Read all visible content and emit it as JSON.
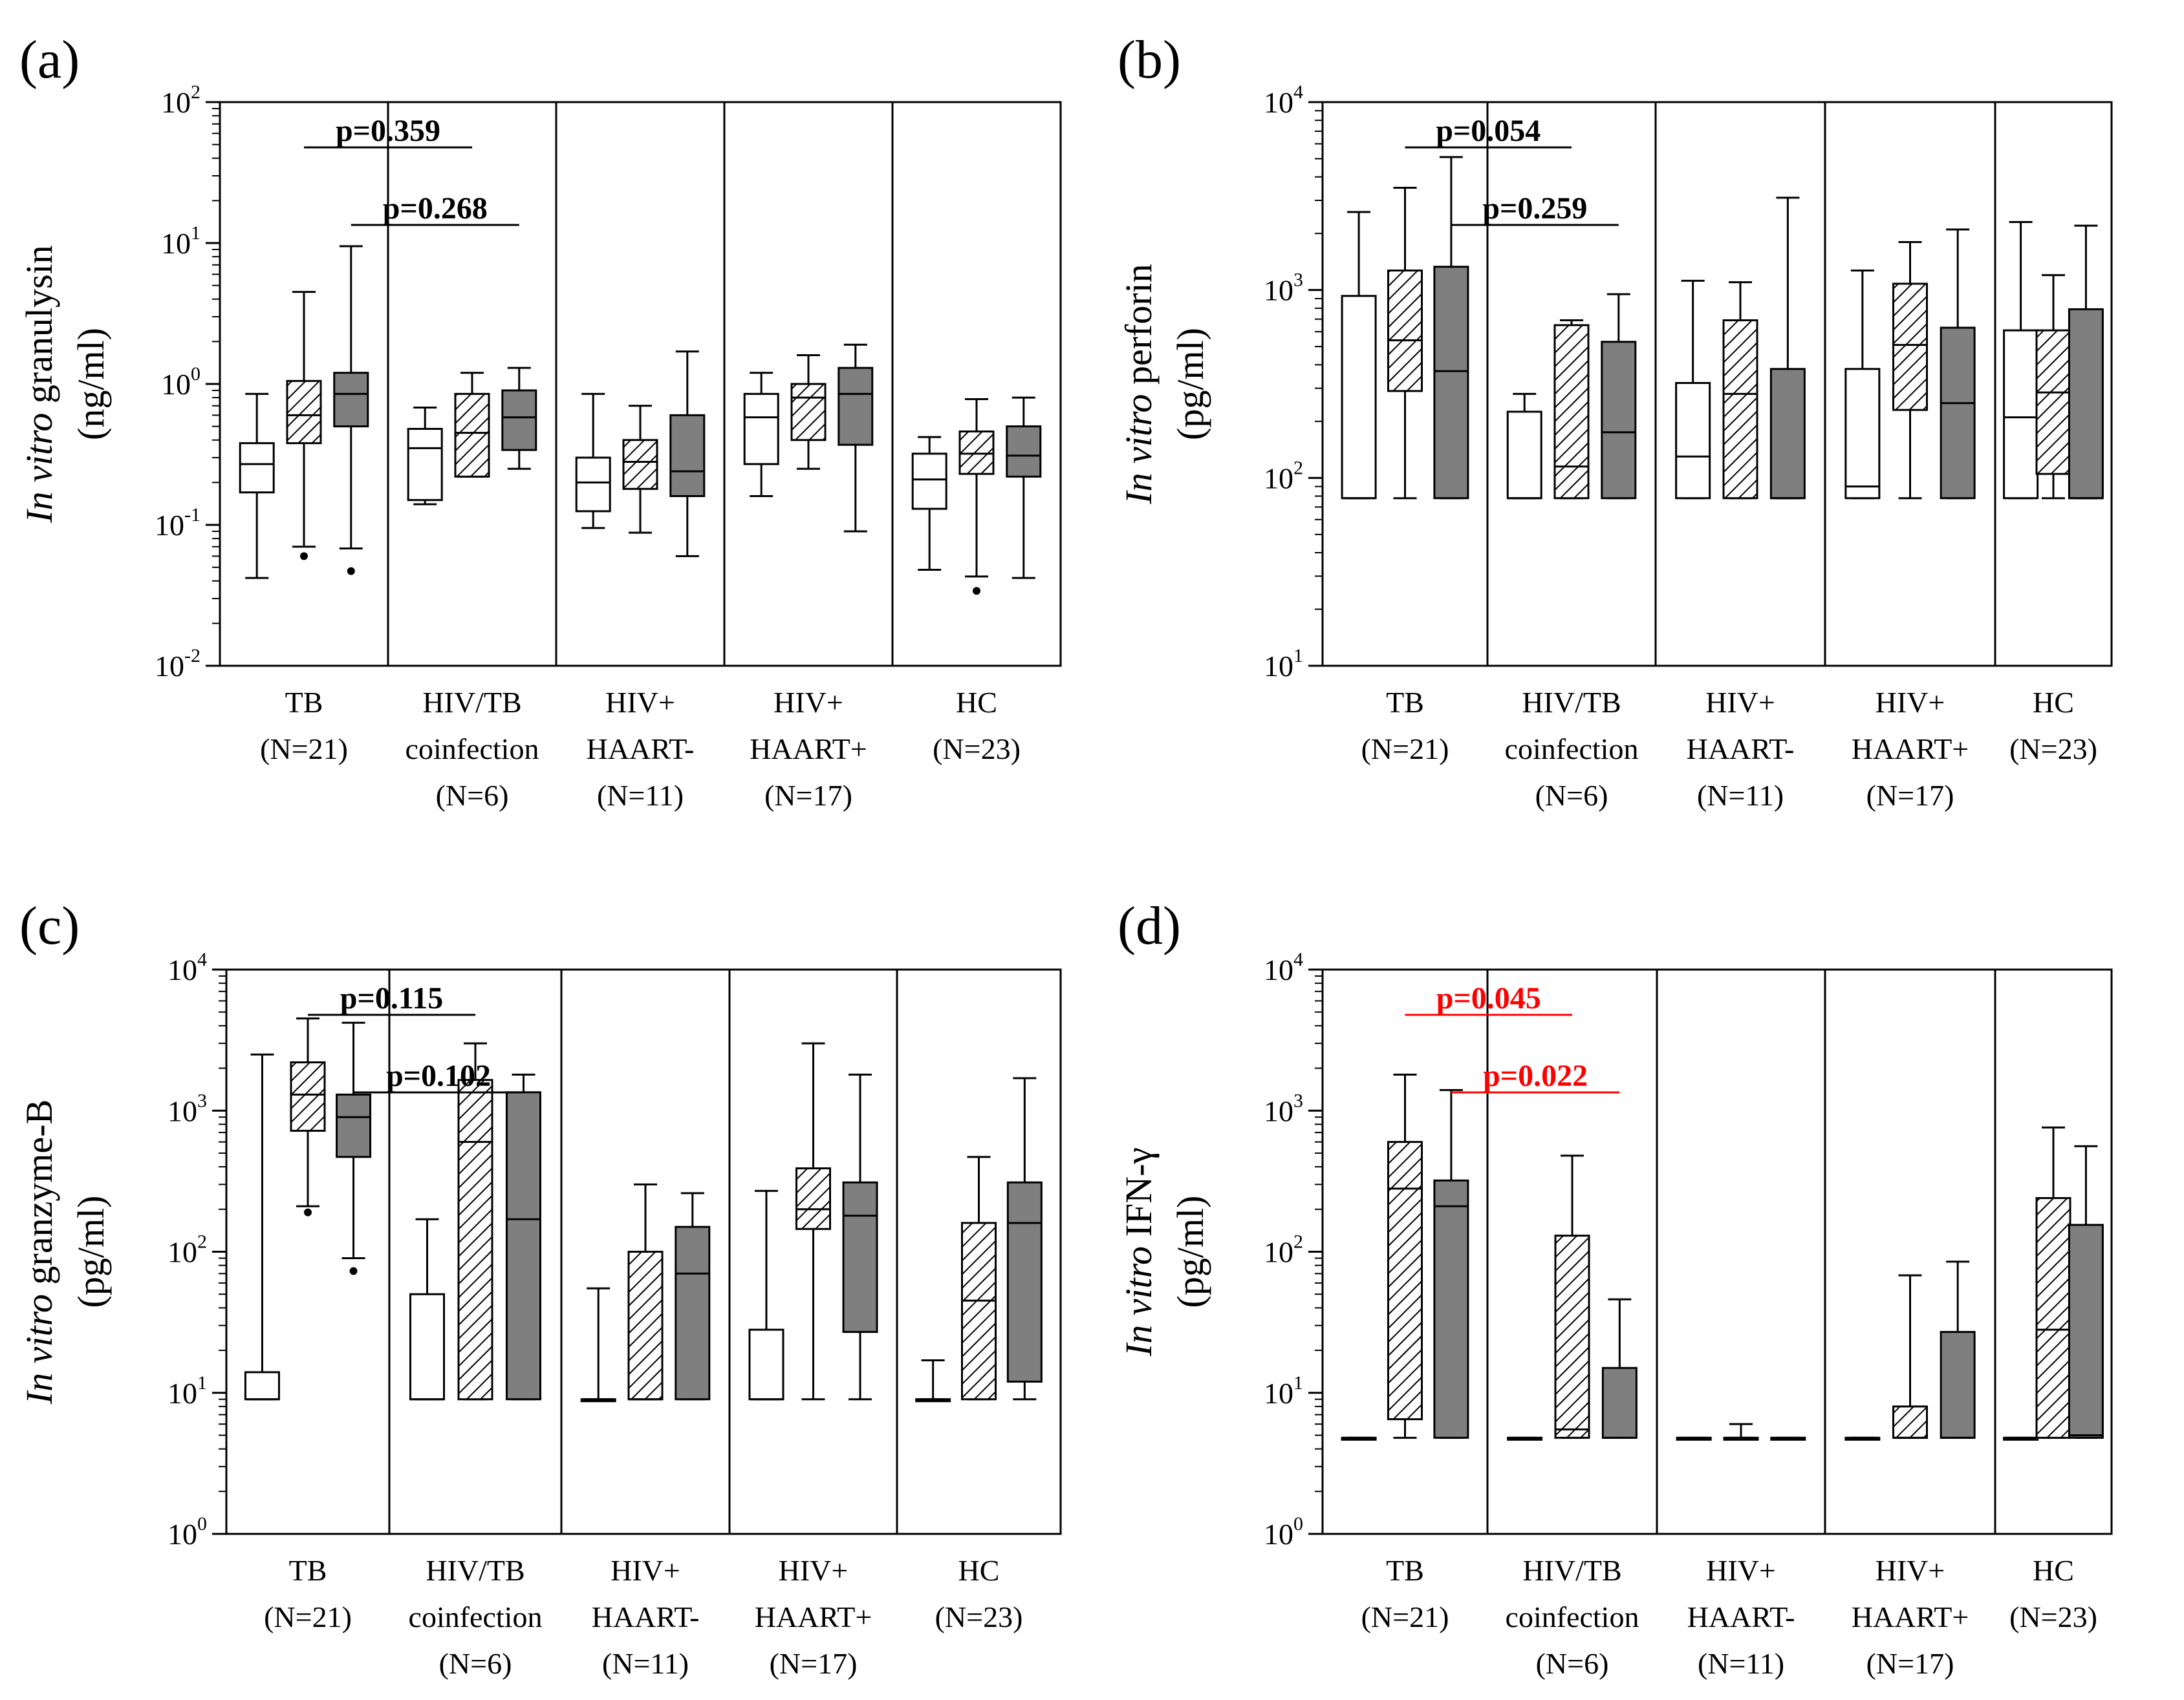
{
  "colors": {
    "ink": "#000000",
    "box_open": "#ffffff",
    "box_filled": "#7f7f7f",
    "significant": "#ff0000"
  },
  "legend_fills": [
    "open",
    "hatched",
    "filled"
  ],
  "chart_data": [
    {
      "panel": "(a)",
      "type": "box",
      "ylabel_italic": "In vitro",
      "ylabel_rest": "granulysin",
      "yunit": "(ng/ml)",
      "yscale": "log",
      "ylim": [
        0.01,
        100
      ],
      "ytick_exponents": [
        -2,
        -1,
        0,
        1,
        2
      ],
      "groups": [
        {
          "label": [
            "TB",
            "(N=21)"
          ]
        },
        {
          "label": [
            "HIV/TB",
            "coinfection",
            "(N=6)"
          ]
        },
        {
          "label": [
            "HIV+",
            "HAART-",
            "(N=11)"
          ]
        },
        {
          "label": [
            "HIV+",
            "HAART+",
            "(N=17)"
          ]
        },
        {
          "label": [
            "HC",
            "(N=23)"
          ]
        }
      ],
      "boxes": [
        {
          "group": 0,
          "fill": "open",
          "min": 0.042,
          "q1": 0.17,
          "median": 0.27,
          "q3": 0.38,
          "max": 0.85
        },
        {
          "group": 0,
          "fill": "hatched",
          "min": 0.07,
          "q1": 0.38,
          "median": 0.6,
          "q3": 1.05,
          "max": 4.5,
          "outliers": [
            0.06
          ]
        },
        {
          "group": 0,
          "fill": "filled",
          "min": 0.068,
          "q1": 0.5,
          "median": 0.85,
          "q3": 1.2,
          "max": 9.5,
          "outliers": [
            0.047
          ]
        },
        {
          "group": 1,
          "fill": "open",
          "min": 0.14,
          "q1": 0.15,
          "median": 0.35,
          "q3": 0.48,
          "max": 0.68
        },
        {
          "group": 1,
          "fill": "hatched",
          "min": 0.22,
          "q1": 0.22,
          "median": 0.45,
          "q3": 0.85,
          "max": 1.2
        },
        {
          "group": 1,
          "fill": "filled",
          "min": 0.25,
          "q1": 0.34,
          "median": 0.58,
          "q3": 0.9,
          "max": 1.3
        },
        {
          "group": 2,
          "fill": "open",
          "min": 0.095,
          "q1": 0.125,
          "median": 0.2,
          "q3": 0.3,
          "max": 0.85
        },
        {
          "group": 2,
          "fill": "hatched",
          "min": 0.088,
          "q1": 0.18,
          "median": 0.28,
          "q3": 0.4,
          "max": 0.7
        },
        {
          "group": 2,
          "fill": "filled",
          "min": 0.06,
          "q1": 0.16,
          "median": 0.24,
          "q3": 0.6,
          "max": 1.7
        },
        {
          "group": 3,
          "fill": "open",
          "min": 0.16,
          "q1": 0.27,
          "median": 0.58,
          "q3": 0.85,
          "max": 1.2
        },
        {
          "group": 3,
          "fill": "hatched",
          "min": 0.25,
          "q1": 0.4,
          "median": 0.8,
          "q3": 1.0,
          "max": 1.6
        },
        {
          "group": 3,
          "fill": "filled",
          "min": 0.09,
          "q1": 0.37,
          "median": 0.85,
          "q3": 1.3,
          "max": 1.9
        },
        {
          "group": 4,
          "fill": "open",
          "min": 0.048,
          "q1": 0.13,
          "median": 0.21,
          "q3": 0.32,
          "max": 0.42
        },
        {
          "group": 4,
          "fill": "hatched",
          "min": 0.043,
          "q1": 0.23,
          "median": 0.32,
          "q3": 0.46,
          "max": 0.78,
          "outliers": [
            0.034
          ]
        },
        {
          "group": 4,
          "fill": "filled",
          "min": 0.042,
          "q1": 0.22,
          "median": 0.31,
          "q3": 0.5,
          "max": 0.8
        }
      ],
      "comparisons": [
        {
          "text": "p=0.359",
          "from": [
            0,
            1
          ],
          "to": [
            1,
            1
          ],
          "level": 0,
          "significant": false
        },
        {
          "text": "p=0.268",
          "from": [
            0,
            2
          ],
          "to": [
            1,
            2
          ],
          "level": 1,
          "significant": false
        }
      ]
    },
    {
      "panel": "(b)",
      "type": "box",
      "ylabel_italic": "In vitro",
      "ylabel_rest": "perforin",
      "yunit": "(pg/ml)",
      "yscale": "log",
      "ylim": [
        10,
        10000
      ],
      "ytick_exponents": [
        1,
        2,
        3,
        4
      ],
      "groups": [
        {
          "label": [
            "TB",
            "(N=21)"
          ]
        },
        {
          "label": [
            "HIV/TB",
            "coinfection",
            "(N=6)"
          ]
        },
        {
          "label": [
            "HIV+",
            "HAART-",
            "(N=11)"
          ]
        },
        {
          "label": [
            "HIV+",
            "HAART+",
            "(N=17)"
          ]
        },
        {
          "label": [
            "HC",
            "(N=23)"
          ]
        }
      ],
      "boxes": [
        {
          "group": 0,
          "fill": "open",
          "min": 78,
          "q1": 78,
          "median": 78,
          "q3": 930,
          "max": 2600
        },
        {
          "group": 0,
          "fill": "hatched",
          "min": 78,
          "q1": 290,
          "median": 540,
          "q3": 1270,
          "max": 3500
        },
        {
          "group": 0,
          "fill": "filled",
          "min": 78,
          "q1": 78,
          "median": 370,
          "q3": 1330,
          "max": 5100
        },
        {
          "group": 1,
          "fill": "open",
          "min": 78,
          "q1": 78,
          "median": 78,
          "q3": 225,
          "max": 280
        },
        {
          "group": 1,
          "fill": "hatched",
          "min": 78,
          "q1": 78,
          "median": 115,
          "q3": 650,
          "max": 690
        },
        {
          "group": 1,
          "fill": "filled",
          "min": 78,
          "q1": 78,
          "median": 175,
          "q3": 530,
          "max": 950
        },
        {
          "group": 2,
          "fill": "open",
          "min": 78,
          "q1": 78,
          "median": 130,
          "q3": 320,
          "max": 1120
        },
        {
          "group": 2,
          "fill": "hatched",
          "min": 78,
          "q1": 78,
          "median": 280,
          "q3": 690,
          "max": 1100
        },
        {
          "group": 2,
          "fill": "filled",
          "min": 78,
          "q1": 78,
          "median": 78,
          "q3": 380,
          "max": 3100
        },
        {
          "group": 3,
          "fill": "open",
          "min": 78,
          "q1": 78,
          "median": 90,
          "q3": 380,
          "max": 1270
        },
        {
          "group": 3,
          "fill": "hatched",
          "min": 78,
          "q1": 230,
          "median": 510,
          "q3": 1080,
          "max": 1800
        },
        {
          "group": 3,
          "fill": "filled",
          "min": 78,
          "q1": 78,
          "median": 250,
          "q3": 630,
          "max": 2100
        },
        {
          "group": 4,
          "fill": "open",
          "min": 78,
          "q1": 78,
          "median": 210,
          "q3": 610,
          "max": 2300
        },
        {
          "group": 4,
          "fill": "hatched",
          "min": 78,
          "q1": 105,
          "median": 285,
          "q3": 610,
          "max": 1200
        },
        {
          "group": 4,
          "fill": "filled",
          "min": 78,
          "q1": 78,
          "median": 78,
          "q3": 790,
          "max": 2200
        }
      ],
      "comparisons": [
        {
          "text": "p=0.054",
          "from": [
            0,
            1
          ],
          "to": [
            1,
            1
          ],
          "level": 0,
          "significant": false
        },
        {
          "text": "p=0.259",
          "from": [
            0,
            2
          ],
          "to": [
            1,
            2
          ],
          "level": 1,
          "significant": false
        }
      ]
    },
    {
      "panel": "(c)",
      "type": "box",
      "ylabel_italic": "In vitro",
      "ylabel_rest": "granzyme-B",
      "yunit": "(pg/ml)",
      "yscale": "log",
      "ylim": [
        1,
        10000
      ],
      "ytick_exponents": [
        0,
        1,
        2,
        3,
        4
      ],
      "groups": [
        {
          "label": [
            "TB",
            "(N=21)"
          ]
        },
        {
          "label": [
            "HIV/TB",
            "coinfection",
            "(N=6)"
          ]
        },
        {
          "label": [
            "HIV+",
            "HAART-",
            "(N=11)"
          ]
        },
        {
          "label": [
            "HIV+",
            "HAART+",
            "(N=17)"
          ]
        },
        {
          "label": [
            "HC",
            "(N=23)"
          ]
        }
      ],
      "boxes": [
        {
          "group": 0,
          "fill": "open",
          "min": 9,
          "q1": 9,
          "median": 9,
          "q3": 14,
          "max": 2500
        },
        {
          "group": 0,
          "fill": "hatched",
          "min": 210,
          "q1": 720,
          "median": 1300,
          "q3": 2200,
          "max": 4500,
          "outliers": [
            190
          ]
        },
        {
          "group": 0,
          "fill": "filled",
          "min": 90,
          "q1": 470,
          "median": 900,
          "q3": 1300,
          "max": 4200,
          "outliers": [
            73
          ]
        },
        {
          "group": 1,
          "fill": "open",
          "min": 9,
          "q1": 9,
          "median": 9,
          "q3": 50,
          "max": 170
        },
        {
          "group": 1,
          "fill": "hatched",
          "min": 9,
          "q1": 9,
          "median": 600,
          "q3": 1650,
          "max": 3000
        },
        {
          "group": 1,
          "fill": "filled",
          "min": 9,
          "q1": 9,
          "median": 170,
          "q3": 1350,
          "max": 1800
        },
        {
          "group": 2,
          "fill": "open",
          "min": 9,
          "q1": 9,
          "median": 9,
          "q3": 9,
          "max": 55
        },
        {
          "group": 2,
          "fill": "hatched",
          "min": 9,
          "q1": 9,
          "median": 9,
          "q3": 100,
          "max": 300
        },
        {
          "group": 2,
          "fill": "filled",
          "min": 9,
          "q1": 9,
          "median": 70,
          "q3": 150,
          "max": 260
        },
        {
          "group": 3,
          "fill": "open",
          "min": 9,
          "q1": 9,
          "median": 9,
          "q3": 28,
          "max": 270
        },
        {
          "group": 3,
          "fill": "hatched",
          "min": 9,
          "q1": 145,
          "median": 200,
          "q3": 390,
          "max": 3000
        },
        {
          "group": 3,
          "fill": "filled",
          "min": 9,
          "q1": 27,
          "median": 180,
          "q3": 310,
          "max": 1800
        },
        {
          "group": 4,
          "fill": "open",
          "min": 9,
          "q1": 9,
          "median": 9,
          "q3": 9,
          "max": 17
        },
        {
          "group": 4,
          "fill": "hatched",
          "min": 9,
          "q1": 9,
          "median": 45,
          "q3": 160,
          "max": 470
        },
        {
          "group": 4,
          "fill": "filled",
          "min": 9,
          "q1": 12,
          "median": 160,
          "q3": 310,
          "max": 1700
        }
      ],
      "comparisons": [
        {
          "text": "p=0.115",
          "from": [
            0,
            1
          ],
          "to": [
            1,
            1
          ],
          "level": 0,
          "significant": false
        },
        {
          "text": "p=0.102",
          "from": [
            0,
            2
          ],
          "to": [
            1,
            2
          ],
          "level": 1,
          "significant": false
        }
      ]
    },
    {
      "panel": "(d)",
      "type": "box",
      "ylabel_italic": "In vitro",
      "ylabel_rest": "IFN-γ",
      "yunit": "(pg/ml)",
      "yscale": "log",
      "ylim": [
        1,
        10000
      ],
      "ytick_exponents": [
        0,
        1,
        2,
        3,
        4
      ],
      "groups": [
        {
          "label": [
            "TB",
            "(N=21)"
          ]
        },
        {
          "label": [
            "HIV/TB",
            "coinfection",
            "(N=6)"
          ]
        },
        {
          "label": [
            "HIV+",
            "HAART-",
            "(N=11)"
          ]
        },
        {
          "label": [
            "HIV+",
            "HAART+",
            "(N=17)"
          ]
        },
        {
          "label": [
            "HC",
            "(N=23)"
          ]
        }
      ],
      "boxes": [
        {
          "group": 0,
          "fill": "open",
          "min": 4.8,
          "q1": 4.8,
          "median": 4.8,
          "q3": 4.8,
          "max": 4.8
        },
        {
          "group": 0,
          "fill": "hatched",
          "min": 4.8,
          "q1": 6.5,
          "median": 280,
          "q3": 600,
          "max": 1800
        },
        {
          "group": 0,
          "fill": "filled",
          "min": 4.8,
          "q1": 4.8,
          "median": 210,
          "q3": 320,
          "max": 1400
        },
        {
          "group": 1,
          "fill": "open",
          "min": 4.8,
          "q1": 4.8,
          "median": 4.8,
          "q3": 4.8,
          "max": 4.8
        },
        {
          "group": 1,
          "fill": "hatched",
          "min": 4.8,
          "q1": 4.8,
          "median": 5.5,
          "q3": 130,
          "max": 480
        },
        {
          "group": 1,
          "fill": "filled",
          "min": 4.8,
          "q1": 4.8,
          "median": 4.8,
          "q3": 15,
          "max": 46
        },
        {
          "group": 2,
          "fill": "open",
          "min": 4.8,
          "q1": 4.8,
          "median": 4.8,
          "q3": 4.8,
          "max": 4.8
        },
        {
          "group": 2,
          "fill": "hatched",
          "min": 4.8,
          "q1": 4.8,
          "median": 4.8,
          "q3": 4.8,
          "max": 6
        },
        {
          "group": 2,
          "fill": "filled",
          "min": 4.8,
          "q1": 4.8,
          "median": 4.8,
          "q3": 4.8,
          "max": 4.8
        },
        {
          "group": 3,
          "fill": "open",
          "min": 4.8,
          "q1": 4.8,
          "median": 4.8,
          "q3": 4.8,
          "max": 4.8
        },
        {
          "group": 3,
          "fill": "hatched",
          "min": 4.8,
          "q1": 4.8,
          "median": 4.8,
          "q3": 8,
          "max": 68
        },
        {
          "group": 3,
          "fill": "filled",
          "min": 4.8,
          "q1": 4.8,
          "median": 4.8,
          "q3": 27,
          "max": 85
        },
        {
          "group": 4,
          "fill": "open",
          "min": 4.8,
          "q1": 4.8,
          "median": 4.8,
          "q3": 4.8,
          "max": 4.8
        },
        {
          "group": 4,
          "fill": "hatched",
          "min": 4.8,
          "q1": 4.8,
          "median": 28,
          "q3": 240,
          "max": 760
        },
        {
          "group": 4,
          "fill": "filled",
          "min": 4.8,
          "q1": 4.8,
          "median": 5,
          "q3": 155,
          "max": 560
        }
      ],
      "comparisons": [
        {
          "text": "p=0.045",
          "from": [
            0,
            1
          ],
          "to": [
            1,
            1
          ],
          "level": 0,
          "significant": true
        },
        {
          "text": "p=0.022",
          "from": [
            0,
            2
          ],
          "to": [
            1,
            2
          ],
          "level": 1,
          "significant": true
        }
      ]
    }
  ]
}
